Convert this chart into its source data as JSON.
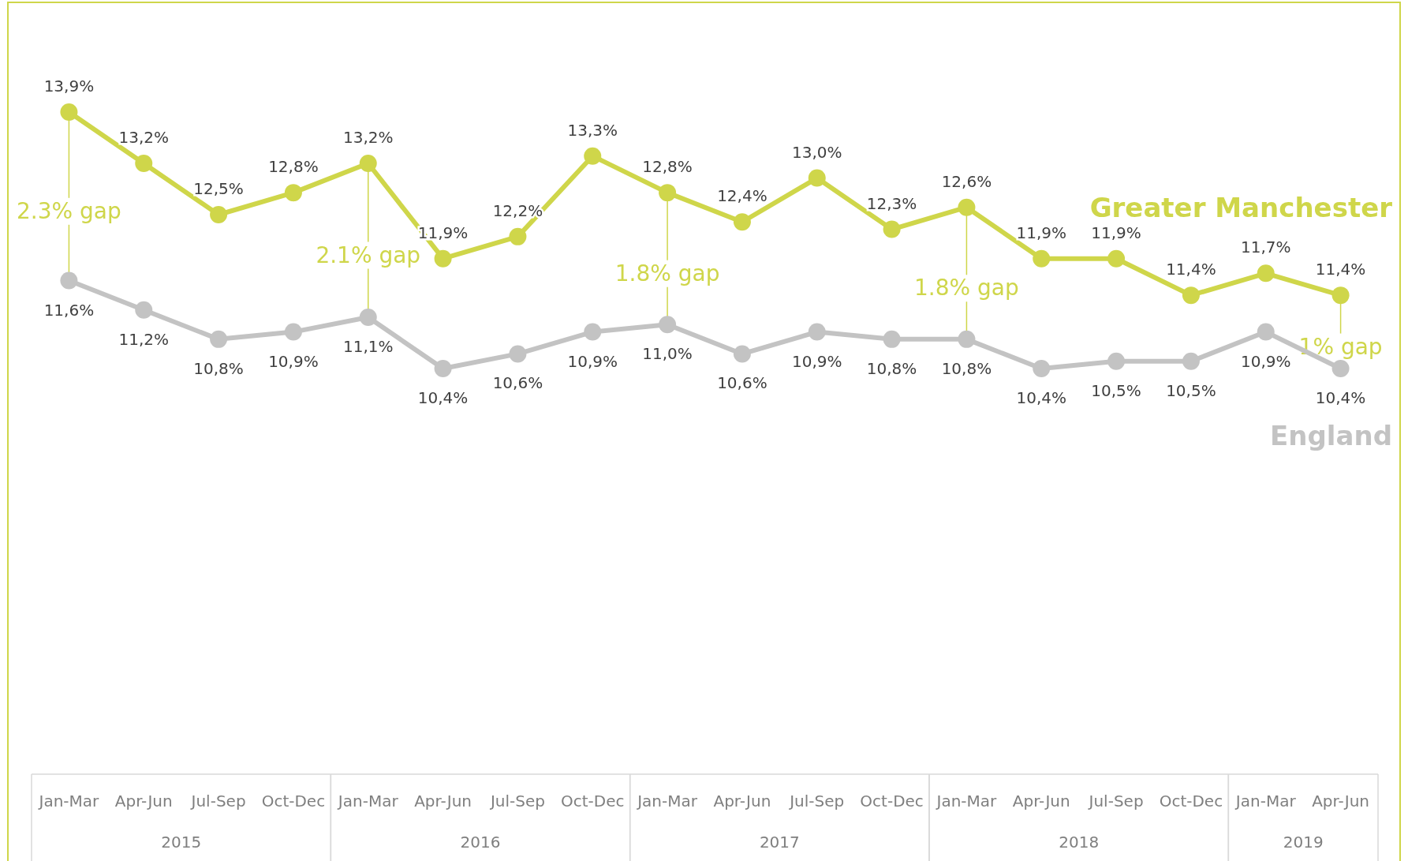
{
  "chart_data": {
    "type": "line",
    "categories": [
      "Jan-Mar",
      "Apr-Jun",
      "Jul-Sep",
      "Oct-Dec",
      "Jan-Mar",
      "Apr-Jun",
      "Jul-Sep",
      "Oct-Dec",
      "Jan-Mar",
      "Apr-Jun",
      "Jul-Sep",
      "Oct-Dec",
      "Jan-Mar",
      "Apr-Jun",
      "Jul-Sep",
      "Oct-Dec",
      "Jan-Mar",
      "Apr-Jun"
    ],
    "series": [
      {
        "name": "Greater Manchester",
        "color": "#cfd64a",
        "values": [
          13.9,
          13.2,
          12.5,
          12.8,
          13.2,
          11.9,
          12.2,
          13.3,
          12.8,
          12.4,
          13.0,
          12.3,
          12.6,
          11.9,
          11.9,
          11.4,
          11.7,
          11.4
        ],
        "value_labels": [
          "13,9%",
          "13,2%",
          "12,5%",
          "12,8%",
          "13,2%",
          "11,9%",
          "12,2%",
          "13,3%",
          "12,8%",
          "12,4%",
          "13,0%",
          "12,3%",
          "12,6%",
          "11,9%",
          "11,9%",
          "11,4%",
          "11,7%",
          "11,4%"
        ]
      },
      {
        "name": "England",
        "color": "#c3c3c3",
        "values": [
          11.6,
          11.2,
          10.8,
          10.9,
          11.1,
          10.4,
          10.6,
          10.9,
          11.0,
          10.6,
          10.9,
          10.8,
          10.8,
          10.4,
          10.5,
          10.5,
          10.9,
          10.4
        ],
        "value_labels": [
          "11,6%",
          "11,2%",
          "10,8%",
          "10,9%",
          "11,1%",
          "10,4%",
          "10,6%",
          "10,9%",
          "11,0%",
          "10,6%",
          "10,9%",
          "10,8%",
          "10,8%",
          "10,4%",
          "10,5%",
          "10,5%",
          "10,9%",
          "10,4%"
        ]
      }
    ],
    "annotations": [
      "2.3% gap",
      "2.1% gap",
      "1.8% gap",
      "1.8% gap",
      "1% gap",
      "2015",
      "2016",
      "2017",
      "2018",
      "2019"
    ],
    "marker": "circle",
    "line_style": "solid"
  }
}
